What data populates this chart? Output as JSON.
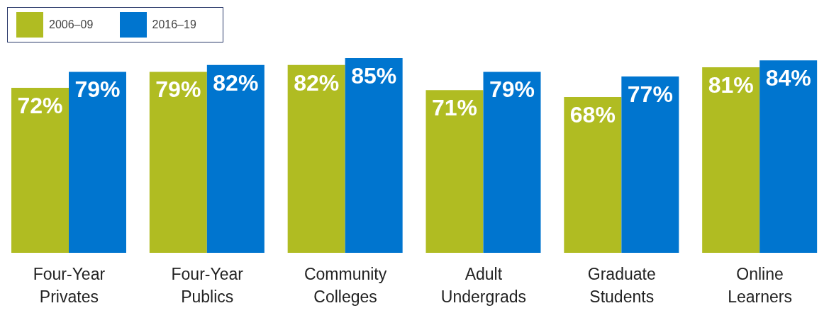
{
  "chart_data": {
    "type": "bar",
    "categories": [
      "Four-Year Privates",
      "Four-Year Publics",
      "Community Colleges",
      "Adult Undergrads",
      "Graduate Students",
      "Online Learners"
    ],
    "series": [
      {
        "name": "2006–09",
        "color": "#b0bc22",
        "values": [
          72,
          79,
          82,
          71,
          68,
          81
        ],
        "value_labels": [
          "72%",
          "79%",
          "82%",
          "71%",
          "68%",
          "81%"
        ]
      },
      {
        "name": "2016–19",
        "color": "#0075cf",
        "values": [
          79,
          82,
          85,
          79,
          77,
          84
        ],
        "value_labels": [
          "79%",
          "82%",
          "85%",
          "79%",
          "77%",
          "84%"
        ]
      }
    ],
    "legend": "top left",
    "grid": false
  }
}
